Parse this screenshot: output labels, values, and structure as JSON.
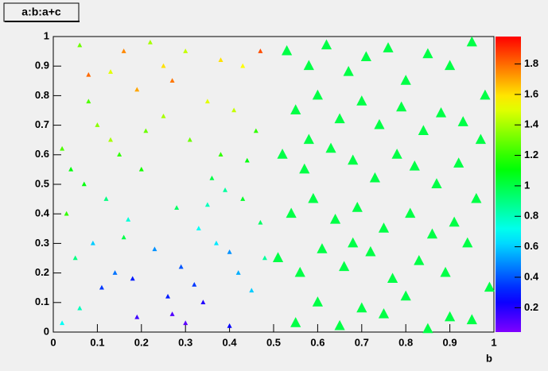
{
  "chart_data": {
    "type": "scatter",
    "title": "a:b:a+c",
    "x_label": "b",
    "xlim": [
      0,
      1
    ],
    "ylim": [
      0,
      1
    ],
    "zlim": [
      0.04,
      1.98
    ],
    "xticks": [
      0,
      0.1,
      0.2,
      0.3,
      0.4,
      0.5,
      0.6,
      0.7,
      0.8,
      0.9,
      1
    ],
    "yticks": [
      0,
      0.1,
      0.2,
      0.3,
      0.4,
      0.5,
      0.6,
      0.7,
      0.8,
      0.9,
      1
    ],
    "zticks": [
      0.2,
      0.4,
      0.6,
      0.8,
      1,
      1.2,
      1.4,
      1.6,
      1.8
    ],
    "palette": "rainbow",
    "groups": [
      {
        "marker_size": 5,
        "x": [
          0.08,
          0.16,
          0.27,
          0.47,
          0.19,
          0.38,
          0.13,
          0.43,
          0.3,
          0.06,
          0.22,
          0.35,
          0.1,
          0.25,
          0.41,
          0.02,
          0.15,
          0.31,
          0.46,
          0.07,
          0.2,
          0.36,
          0.44,
          0.12,
          0.28,
          0.39,
          0.03,
          0.17,
          0.33,
          0.47,
          0.09,
          0.23,
          0.37,
          0.05,
          0.14,
          0.29,
          0.42,
          0.11,
          0.26,
          0.34,
          0.45,
          0.06,
          0.19,
          0.3,
          0.4,
          0.02,
          0.08,
          0.21,
          0.43,
          0.16,
          0.38,
          0.48,
          0.25,
          0.32,
          0.04,
          0.18,
          0.27,
          0.4,
          0.13,
          0.35
        ],
        "y": [
          0.87,
          0.95,
          0.85,
          0.95,
          0.82,
          0.92,
          0.88,
          0.9,
          0.95,
          0.97,
          0.98,
          0.78,
          0.7,
          0.73,
          0.75,
          0.62,
          0.6,
          0.65,
          0.68,
          0.5,
          0.55,
          0.52,
          0.58,
          0.45,
          0.42,
          0.48,
          0.4,
          0.38,
          0.35,
          0.37,
          0.3,
          0.28,
          0.3,
          0.25,
          0.2,
          0.22,
          0.2,
          0.15,
          0.12,
          0.1,
          0.14,
          0.08,
          0.05,
          0.03,
          0.02,
          0.03,
          0.78,
          0.68,
          0.45,
          0.32,
          0.6,
          0.25,
          0.9,
          0.16,
          0.55,
          0.18,
          0.06,
          0.27,
          0.65,
          0.43
        ],
        "z": [
          1.8,
          1.75,
          1.78,
          1.85,
          1.7,
          1.6,
          1.5,
          1.55,
          1.45,
          1.3,
          1.4,
          1.5,
          1.35,
          1.4,
          1.45,
          1.25,
          1.2,
          1.3,
          1.2,
          1.1,
          1.15,
          1.0,
          1.1,
          0.9,
          0.95,
          0.85,
          1.2,
          0.75,
          0.7,
          0.95,
          0.6,
          0.5,
          0.65,
          0.9,
          0.45,
          0.4,
          0.55,
          0.35,
          0.3,
          0.2,
          0.6,
          0.8,
          0.15,
          0.1,
          0.25,
          0.7,
          1.25,
          1.3,
          1.05,
          1.0,
          1.2,
          0.85,
          1.6,
          0.35,
          1.1,
          0.3,
          0.12,
          0.5,
          1.4,
          0.8
        ]
      },
      {
        "marker_size": 11,
        "x": [
          0.53,
          0.58,
          0.62,
          0.67,
          0.71,
          0.76,
          0.8,
          0.85,
          0.9,
          0.95,
          0.98,
          0.55,
          0.6,
          0.65,
          0.7,
          0.74,
          0.79,
          0.84,
          0.88,
          0.93,
          0.97,
          0.52,
          0.57,
          0.63,
          0.68,
          0.73,
          0.78,
          0.82,
          0.87,
          0.92,
          0.96,
          0.54,
          0.59,
          0.64,
          0.69,
          0.75,
          0.81,
          0.86,
          0.91,
          0.94,
          0.51,
          0.56,
          0.61,
          0.66,
          0.72,
          0.77,
          0.83,
          0.89,
          0.99,
          0.6,
          0.7,
          0.8,
          0.9,
          0.55,
          0.65,
          0.75,
          0.85,
          0.95,
          0.58,
          0.68
        ],
        "y": [
          0.95,
          0.9,
          0.97,
          0.88,
          0.93,
          0.96,
          0.85,
          0.94,
          0.9,
          0.98,
          0.8,
          0.75,
          0.8,
          0.72,
          0.78,
          0.7,
          0.76,
          0.68,
          0.74,
          0.71,
          0.65,
          0.6,
          0.55,
          0.62,
          0.58,
          0.52,
          0.6,
          0.56,
          0.5,
          0.57,
          0.45,
          0.4,
          0.45,
          0.38,
          0.42,
          0.35,
          0.4,
          0.33,
          0.37,
          0.3,
          0.25,
          0.2,
          0.28,
          0.22,
          0.27,
          0.18,
          0.24,
          0.2,
          0.15,
          0.1,
          0.08,
          0.12,
          0.05,
          0.03,
          0.02,
          0.06,
          0.01,
          0.04,
          0.65,
          0.3
        ],
        "z": [
          1.0,
          1.0,
          1.0,
          1.0,
          1.0,
          1.0,
          1.0,
          1.0,
          1.0,
          1.0,
          1.0,
          1.0,
          1.0,
          1.0,
          1.0,
          1.0,
          1.0,
          1.0,
          1.0,
          1.0,
          1.0,
          1.0,
          1.0,
          1.0,
          1.0,
          1.0,
          1.0,
          1.0,
          1.0,
          1.0,
          1.0,
          1.0,
          1.0,
          1.0,
          1.0,
          1.0,
          1.0,
          1.0,
          1.0,
          1.0,
          1.0,
          1.0,
          1.0,
          1.0,
          1.0,
          1.0,
          1.0,
          1.0,
          1.0,
          1.0,
          1.0,
          1.0,
          1.0,
          1.0,
          1.0,
          1.0,
          1.0,
          1.0,
          1.0,
          1.0
        ]
      }
    ]
  }
}
